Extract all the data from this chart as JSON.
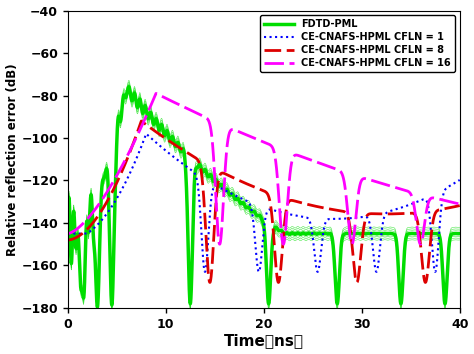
{
  "title": "",
  "xlabel": "Time（ns）",
  "ylabel": "Relative reflection error (dB)",
  "xlim": [
    0,
    40
  ],
  "ylim": [
    -180,
    -40
  ],
  "yticks": [
    -180,
    -160,
    -140,
    -120,
    -100,
    -80,
    -60,
    -40
  ],
  "xticks": [
    0,
    10,
    20,
    30,
    40
  ],
  "legend": [
    {
      "label": "FDTD-PML",
      "color": "#00dd00",
      "lw": 2.5,
      "ls": "solid"
    },
    {
      "label": "CE-CNAFS-HPML CFLN = 1",
      "color": "#0000ff",
      "lw": 1.5,
      "ls": "dotted"
    },
    {
      "label": "CE-CNAFS-HPML CFLN = 8",
      "color": "#dd0000",
      "lw": 2.0,
      "ls": "dashed"
    },
    {
      "label": "CE-CNAFS-HPML CFLN = 16",
      "color": "#ff00ff",
      "lw": 2.0,
      "ls": "dashed"
    }
  ],
  "background_color": "#ffffff"
}
